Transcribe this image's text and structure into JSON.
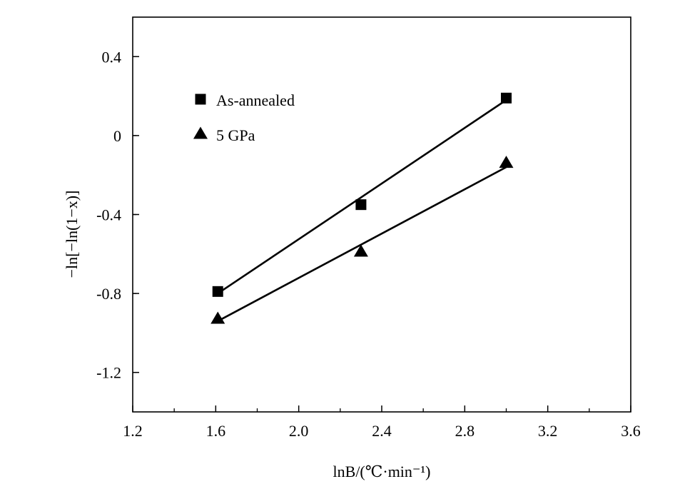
{
  "chart_data": {
    "type": "scatter",
    "title": "",
    "xlabel": "lnB/(℃·min⁻¹)",
    "ylabel": "−ln[−ln(1−x)]",
    "xlim": [
      1.2,
      3.6
    ],
    "ylim": [
      -1.4,
      0.6
    ],
    "xticks": [
      1.2,
      1.6,
      2.0,
      2.4,
      2.8,
      3.2,
      3.6
    ],
    "xtick_labels": [
      "1.2",
      "1.6",
      "2.0",
      "2.4",
      "2.8",
      "3.2",
      "3.6"
    ],
    "yticks": [
      0.4,
      0,
      -0.4,
      -0.8,
      -1.2
    ],
    "ytick_labels": [
      "0.4",
      "0",
      "-0.4",
      "-0.8",
      "-1.2"
    ],
    "grid": false,
    "legend_position": "top-left",
    "series": [
      {
        "name": "As-annealed",
        "marker": "square",
        "color": "#000000",
        "x": [
          1.61,
          2.3,
          3.0
        ],
        "y": [
          -0.79,
          -0.35,
          0.19
        ],
        "fit_line": {
          "x": [
            1.61,
            3.0
          ],
          "y": [
            -0.8,
            0.18
          ]
        }
      },
      {
        "name": "5 GPa",
        "marker": "triangle",
        "color": "#000000",
        "x": [
          1.61,
          2.3,
          3.0
        ],
        "y": [
          -0.93,
          -0.59,
          -0.14
        ],
        "fit_line": {
          "x": [
            1.61,
            3.0
          ],
          "y": [
            -0.94,
            -0.16
          ]
        }
      }
    ]
  }
}
